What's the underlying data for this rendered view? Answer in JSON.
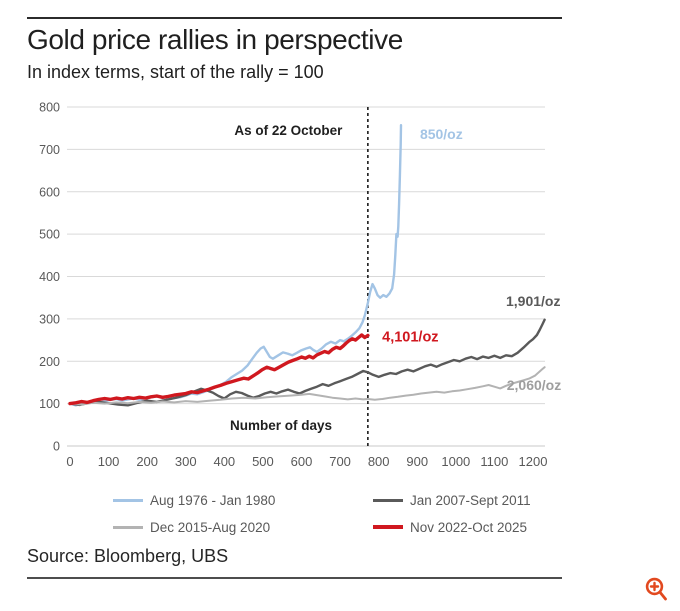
{
  "header": {
    "title": "Gold price rallies in perspective",
    "subtitle": "In index terms, start of the rally = 100"
  },
  "source": "Source: Bloomberg, UBS",
  "icons": {
    "zoom_icon": "magnifier-plus-icon",
    "zoom_icon_color": "#e2491f"
  },
  "colors": {
    "grid": "#d9d9d9",
    "axis_text": "#595959",
    "dashed_line": "#1a1a1a",
    "text": "#1f1f1f"
  },
  "chart_data": {
    "type": "line",
    "title": "Gold price rallies in perspective",
    "subtitle": "In index terms, start of the rally = 100",
    "xlabel": "Number of days",
    "ylabel": "",
    "xlim": [
      0,
      1240
    ],
    "ylim": [
      0,
      800
    ],
    "xticks": [
      0,
      100,
      200,
      300,
      400,
      500,
      600,
      700,
      800,
      900,
      1000,
      1100,
      1200
    ],
    "yticks": [
      0,
      100,
      200,
      300,
      400,
      500,
      600,
      700,
      800
    ],
    "grid": "horizontal",
    "legend_position": "bottom",
    "dashed_vline_day": 772,
    "series": [
      {
        "name": "Aug 1976 - Jan 1980",
        "color": "#a3c4e5",
        "line_width": 2.4,
        "end_price_label": "850/oz",
        "points": [
          [
            0,
            100
          ],
          [
            15,
            96
          ],
          [
            30,
            100
          ],
          [
            45,
            103
          ],
          [
            60,
            105
          ],
          [
            75,
            102
          ],
          [
            90,
            106
          ],
          [
            105,
            109
          ],
          [
            120,
            111
          ],
          [
            135,
            107
          ],
          [
            150,
            110
          ],
          [
            165,
            112
          ],
          [
            180,
            109
          ],
          [
            195,
            112
          ],
          [
            210,
            115
          ],
          [
            225,
            117
          ],
          [
            240,
            113
          ],
          [
            255,
            116
          ],
          [
            270,
            113
          ],
          [
            285,
            115
          ],
          [
            300,
            119
          ],
          [
            315,
            124
          ],
          [
            330,
            122
          ],
          [
            345,
            127
          ],
          [
            360,
            132
          ],
          [
            375,
            138
          ],
          [
            390,
            144
          ],
          [
            405,
            152
          ],
          [
            418,
            162
          ],
          [
            432,
            170
          ],
          [
            446,
            178
          ],
          [
            460,
            190
          ],
          [
            472,
            205
          ],
          [
            484,
            220
          ],
          [
            494,
            230
          ],
          [
            502,
            234
          ],
          [
            510,
            222
          ],
          [
            518,
            210
          ],
          [
            526,
            206
          ],
          [
            540,
            214
          ],
          [
            552,
            221
          ],
          [
            564,
            218
          ],
          [
            576,
            214
          ],
          [
            588,
            220
          ],
          [
            600,
            226
          ],
          [
            612,
            230
          ],
          [
            622,
            233
          ],
          [
            630,
            227
          ],
          [
            640,
            222
          ],
          [
            652,
            230
          ],
          [
            664,
            240
          ],
          [
            676,
            246
          ],
          [
            688,
            242
          ],
          [
            700,
            250
          ],
          [
            710,
            247
          ],
          [
            720,
            253
          ],
          [
            730,
            260
          ],
          [
            740,
            268
          ],
          [
            750,
            278
          ],
          [
            758,
            292
          ],
          [
            764,
            308
          ],
          [
            772,
            338
          ],
          [
            778,
            364
          ],
          [
            784,
            382
          ],
          [
            790,
            372
          ],
          [
            797,
            356
          ],
          [
            804,
            350
          ],
          [
            812,
            356
          ],
          [
            820,
            352
          ],
          [
            828,
            360
          ],
          [
            835,
            372
          ],
          [
            840,
            405
          ],
          [
            843,
            450
          ],
          [
            846,
            500
          ],
          [
            849,
            494
          ],
          [
            851,
            518
          ],
          [
            853,
            572
          ],
          [
            855,
            638
          ],
          [
            857,
            712
          ],
          [
            858,
            757
          ]
        ]
      },
      {
        "name": "Jan 2007-Sept  2011",
        "color": "#5a5a5a",
        "line_width": 2.4,
        "end_price_label": "1,901/oz",
        "points": [
          [
            0,
            100
          ],
          [
            25,
            97
          ],
          [
            50,
            102
          ],
          [
            75,
            104
          ],
          [
            100,
            101
          ],
          [
            125,
            98
          ],
          [
            150,
            96
          ],
          [
            175,
            102
          ],
          [
            200,
            107
          ],
          [
            225,
            104
          ],
          [
            250,
            109
          ],
          [
            275,
            114
          ],
          [
            300,
            120
          ],
          [
            320,
            128
          ],
          [
            340,
            135
          ],
          [
            355,
            131
          ],
          [
            370,
            126
          ],
          [
            385,
            118
          ],
          [
            400,
            112
          ],
          [
            415,
            122
          ],
          [
            430,
            128
          ],
          [
            445,
            125
          ],
          [
            460,
            119
          ],
          [
            475,
            114
          ],
          [
            490,
            118
          ],
          [
            505,
            124
          ],
          [
            520,
            128
          ],
          [
            535,
            124
          ],
          [
            550,
            129
          ],
          [
            565,
            133
          ],
          [
            580,
            128
          ],
          [
            595,
            124
          ],
          [
            610,
            130
          ],
          [
            625,
            135
          ],
          [
            640,
            140
          ],
          [
            655,
            146
          ],
          [
            670,
            142
          ],
          [
            685,
            148
          ],
          [
            700,
            153
          ],
          [
            715,
            158
          ],
          [
            730,
            163
          ],
          [
            745,
            170
          ],
          [
            760,
            177
          ],
          [
            772,
            174
          ],
          [
            785,
            168
          ],
          [
            800,
            163
          ],
          [
            815,
            168
          ],
          [
            830,
            172
          ],
          [
            845,
            170
          ],
          [
            860,
            176
          ],
          [
            875,
            180
          ],
          [
            890,
            176
          ],
          [
            905,
            182
          ],
          [
            920,
            188
          ],
          [
            935,
            192
          ],
          [
            950,
            187
          ],
          [
            965,
            193
          ],
          [
            980,
            198
          ],
          [
            995,
            203
          ],
          [
            1010,
            200
          ],
          [
            1025,
            206
          ],
          [
            1040,
            210
          ],
          [
            1055,
            205
          ],
          [
            1070,
            211
          ],
          [
            1085,
            208
          ],
          [
            1100,
            213
          ],
          [
            1115,
            208
          ],
          [
            1130,
            214
          ],
          [
            1145,
            212
          ],
          [
            1160,
            220
          ],
          [
            1175,
            232
          ],
          [
            1190,
            245
          ],
          [
            1200,
            252
          ],
          [
            1210,
            262
          ],
          [
            1218,
            275
          ],
          [
            1225,
            288
          ],
          [
            1230,
            298
          ]
        ]
      },
      {
        "name": "Dec 2015-Aug 2020",
        "color": "#b3b3b3",
        "line_width": 2.0,
        "end_price_label": "2,060/oz",
        "points": [
          [
            0,
            100
          ],
          [
            30,
            98
          ],
          [
            60,
            102
          ],
          [
            90,
            100
          ],
          [
            120,
            103
          ],
          [
            150,
            101
          ],
          [
            180,
            104
          ],
          [
            210,
            102
          ],
          [
            240,
            105
          ],
          [
            270,
            103
          ],
          [
            300,
            106
          ],
          [
            330,
            104
          ],
          [
            360,
            107
          ],
          [
            390,
            109
          ],
          [
            420,
            112
          ],
          [
            450,
            114
          ],
          [
            480,
            112
          ],
          [
            510,
            115
          ],
          [
            540,
            117
          ],
          [
            570,
            119
          ],
          [
            600,
            121
          ],
          [
            620,
            123
          ],
          [
            640,
            120
          ],
          [
            660,
            117
          ],
          [
            680,
            114
          ],
          [
            700,
            112
          ],
          [
            720,
            110
          ],
          [
            740,
            112
          ],
          [
            760,
            110
          ],
          [
            772,
            111
          ],
          [
            790,
            109
          ],
          [
            810,
            111
          ],
          [
            830,
            114
          ],
          [
            850,
            116
          ],
          [
            870,
            119
          ],
          [
            890,
            121
          ],
          [
            910,
            124
          ],
          [
            930,
            126
          ],
          [
            950,
            128
          ],
          [
            970,
            126
          ],
          [
            990,
            129
          ],
          [
            1010,
            131
          ],
          [
            1030,
            134
          ],
          [
            1050,
            137
          ],
          [
            1070,
            141
          ],
          [
            1085,
            144
          ],
          [
            1100,
            140
          ],
          [
            1115,
            136
          ],
          [
            1130,
            142
          ],
          [
            1145,
            147
          ],
          [
            1160,
            151
          ],
          [
            1175,
            155
          ],
          [
            1190,
            159
          ],
          [
            1205,
            166
          ],
          [
            1215,
            174
          ],
          [
            1225,
            182
          ],
          [
            1230,
            186
          ]
        ]
      },
      {
        "name": "Nov 2022-Oct 2025",
        "color": "#d0181f",
        "line_width": 3.4,
        "end_price_label": "4,101/oz",
        "points": [
          [
            0,
            100
          ],
          [
            15,
            102
          ],
          [
            30,
            105
          ],
          [
            45,
            103
          ],
          [
            60,
            107
          ],
          [
            75,
            110
          ],
          [
            90,
            112
          ],
          [
            105,
            110
          ],
          [
            120,
            113
          ],
          [
            135,
            111
          ],
          [
            150,
            114
          ],
          [
            165,
            112
          ],
          [
            180,
            115
          ],
          [
            195,
            113
          ],
          [
            210,
            116
          ],
          [
            225,
            118
          ],
          [
            240,
            115
          ],
          [
            255,
            117
          ],
          [
            270,
            120
          ],
          [
            285,
            122
          ],
          [
            300,
            124
          ],
          [
            315,
            128
          ],
          [
            330,
            126
          ],
          [
            345,
            130
          ],
          [
            360,
            134
          ],
          [
            375,
            139
          ],
          [
            390,
            143
          ],
          [
            405,
            148
          ],
          [
            420,
            152
          ],
          [
            435,
            156
          ],
          [
            450,
            160
          ],
          [
            462,
            158
          ],
          [
            474,
            165
          ],
          [
            486,
            172
          ],
          [
            498,
            180
          ],
          [
            510,
            186
          ],
          [
            520,
            183
          ],
          [
            530,
            180
          ],
          [
            542,
            186
          ],
          [
            554,
            192
          ],
          [
            566,
            198
          ],
          [
            578,
            202
          ],
          [
            590,
            206
          ],
          [
            600,
            210
          ],
          [
            610,
            207
          ],
          [
            620,
            212
          ],
          [
            630,
            208
          ],
          [
            640,
            215
          ],
          [
            650,
            219
          ],
          [
            660,
            223
          ],
          [
            670,
            220
          ],
          [
            680,
            228
          ],
          [
            690,
            233
          ],
          [
            700,
            230
          ],
          [
            708,
            236
          ],
          [
            716,
            243
          ],
          [
            724,
            249
          ],
          [
            732,
            253
          ],
          [
            740,
            250
          ],
          [
            748,
            256
          ],
          [
            756,
            262
          ],
          [
            764,
            256
          ],
          [
            772,
            261
          ]
        ]
      }
    ],
    "annotations": [
      {
        "text": "As of 22 October",
        "day": 706,
        "value": 746,
        "align": "end",
        "color": "#1f1f1f",
        "bold": true,
        "size": 13.5
      },
      {
        "text": "850/oz",
        "day": 907,
        "value": 736,
        "align": "start",
        "color": "#a3c4e5",
        "bold": true,
        "size": 14
      },
      {
        "text": "1,901/oz",
        "day": 1130,
        "value": 342,
        "align": "start",
        "color": "#595959",
        "bold": true,
        "size": 14
      },
      {
        "text": "4,101/oz",
        "day": 809,
        "value": 258,
        "align": "start",
        "color": "#d0181f",
        "bold": true,
        "size": 14.5
      },
      {
        "text": "2,060/oz",
        "day": 1132,
        "value": 144,
        "align": "start",
        "color": "#9e9e9e",
        "bold": true,
        "size": 14
      },
      {
        "text": "Number of days",
        "day": 547,
        "value": 50,
        "align": "middle",
        "color": "#1f1f1f",
        "bold": true,
        "size": 13.5
      }
    ]
  }
}
